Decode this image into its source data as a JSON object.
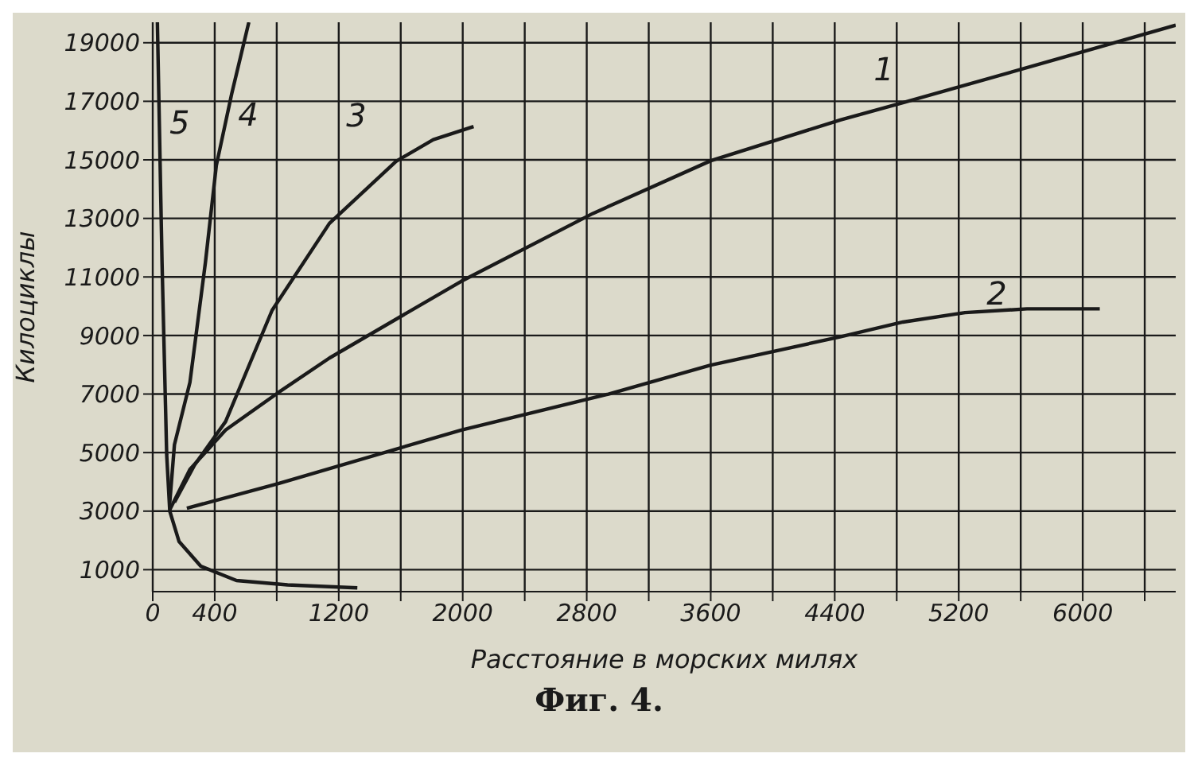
{
  "chart_data": {
    "type": "line",
    "title": "Фиг. 4.",
    "xlabel": "Расстояние в морских милях",
    "ylabel": "Килоциклы",
    "xlim": [
      0,
      6600
    ],
    "ylim": [
      250,
      19700
    ],
    "xticks": [
      0,
      400,
      {
        "value": 800,
        "label": null
      },
      1200,
      {
        "value": 1600,
        "label": null
      },
      2000,
      {
        "value": 2400,
        "label": null
      },
      2800,
      {
        "value": 3200,
        "label": null
      },
      3600,
      {
        "value": 4000,
        "label": null
      },
      4400,
      {
        "value": 4800,
        "label": null
      },
      5200,
      {
        "value": 5600,
        "label": null
      },
      6000,
      {
        "value": 6400,
        "label": null
      }
    ],
    "yticks": [
      1000,
      3000,
      5000,
      7000,
      9000,
      11000,
      13000,
      15000,
      17000,
      19000
    ],
    "grid": true,
    "legend": false,
    "marker": "none",
    "line_style": "solid",
    "series": [
      {
        "name": "1",
        "color": "#1a1a1a",
        "x": [
          110,
          240,
          470,
          810,
          1140,
          1990,
          2840,
          3600,
          4440,
          4840,
          6040,
          6600
        ],
        "values": [
          3050,
          4430,
          5770,
          7050,
          8230,
          10850,
          13170,
          14970,
          16370,
          16950,
          18750,
          19600
        ]
      },
      {
        "name": "2",
        "color": "#1a1a1a",
        "x": [
          220,
          810,
          1990,
          2940,
          3600,
          4440,
          4840,
          5240,
          5640,
          6110
        ],
        "values": [
          3100,
          3940,
          5770,
          7000,
          7990,
          8960,
          9460,
          9780,
          9910,
          9910
        ]
      },
      {
        "name": "3",
        "color": "#1a1a1a",
        "x": [
          140,
          270,
          470,
          770,
          1140,
          1570,
          1810,
          2070
        ],
        "values": [
          3300,
          4580,
          6060,
          9860,
          12830,
          14950,
          15690,
          16140
        ]
      },
      {
        "name": "4",
        "color": "#1a1a1a",
        "x": [
          110,
          140,
          240,
          340,
          410,
          510,
          620
        ],
        "values": [
          3300,
          5270,
          7400,
          11500,
          14800,
          17270,
          19700
        ]
      },
      {
        "name": "5",
        "color": "#1a1a1a",
        "x": [
          30,
          60,
          90,
          110,
          170,
          310,
          540,
          870,
          1320
        ],
        "values": [
          19700,
          11500,
          4930,
          3000,
          1960,
          1120,
          630,
          480,
          380
        ]
      }
    ]
  }
}
